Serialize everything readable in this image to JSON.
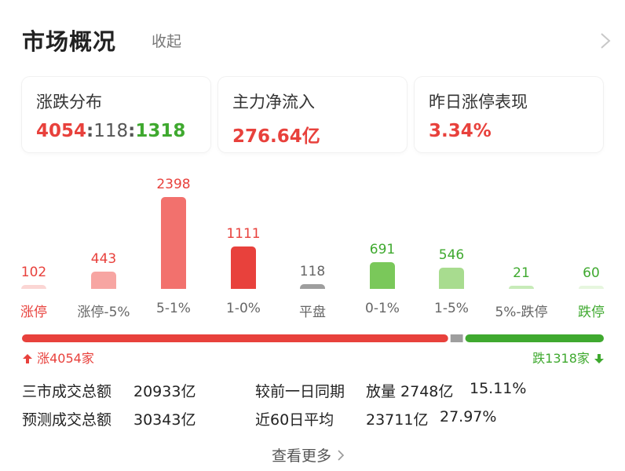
{
  "header": {
    "title": "市场概况",
    "collapse_label": "收起",
    "chevron_icon": "chevron-right-icon"
  },
  "cards": [
    {
      "label": "涨跌分布",
      "up": "4054",
      "sep1": ":",
      "flat": "118",
      "sep2": ":",
      "down": "1318"
    },
    {
      "label": "主力净流入",
      "value": "276.64亿"
    },
    {
      "label": "昨日涨停表现",
      "value": "3.34%"
    }
  ],
  "chart_data": {
    "type": "bar",
    "categories": [
      "涨停",
      "涨停-5%",
      "5-1%",
      "1-0%",
      "平盘",
      "0-1%",
      "1-5%",
      "5%-跌停",
      "跌停"
    ],
    "values": [
      102,
      443,
      2398,
      1111,
      118,
      691,
      546,
      21,
      60
    ],
    "colors": [
      "#fbd6d4",
      "#f7a5a2",
      "#f2716d",
      "#e8413c",
      "#9e9e9e",
      "#7ac85a",
      "#a8dc8f",
      "#c7ebb8",
      "#e6f6de"
    ],
    "category_colors": [
      "#e8413c",
      "#666666",
      "#666666",
      "#666666",
      "#666666",
      "#666666",
      "#666666",
      "#666666",
      "#3fa92f"
    ],
    "value_colors": [
      "#e8413c",
      "#e8413c",
      "#e8413c",
      "#e8413c",
      "#666666",
      "#3fa92f",
      "#3fa92f",
      "#3fa92f",
      "#3fa92f"
    ],
    "title": "",
    "xlabel": "",
    "ylabel": "",
    "grid": false
  },
  "breadth": {
    "up_count": 4054,
    "flat_count": 118,
    "down_count": 1318,
    "up_label": "涨4054家",
    "down_label": "跌1318家",
    "up_color": "#e8413c",
    "flat_color": "#9e9e9e",
    "down_color": "#3fa92f",
    "up_arrow_icon": "arrow-up-icon",
    "down_arrow_icon": "arrow-down-icon"
  },
  "stats": {
    "total_label": "三市成交总额",
    "total_value": "20933亿",
    "compare_label": "较前一日同期",
    "compare_value": "放量 2748亿",
    "compare_pct": "15.11%",
    "forecast_label": "预测成交总额",
    "forecast_value": "30343亿",
    "avg_label": "近60日平均",
    "avg_value": "23711亿",
    "avg_pct": "27.97%"
  },
  "footer": {
    "more_label": "查看更多"
  }
}
